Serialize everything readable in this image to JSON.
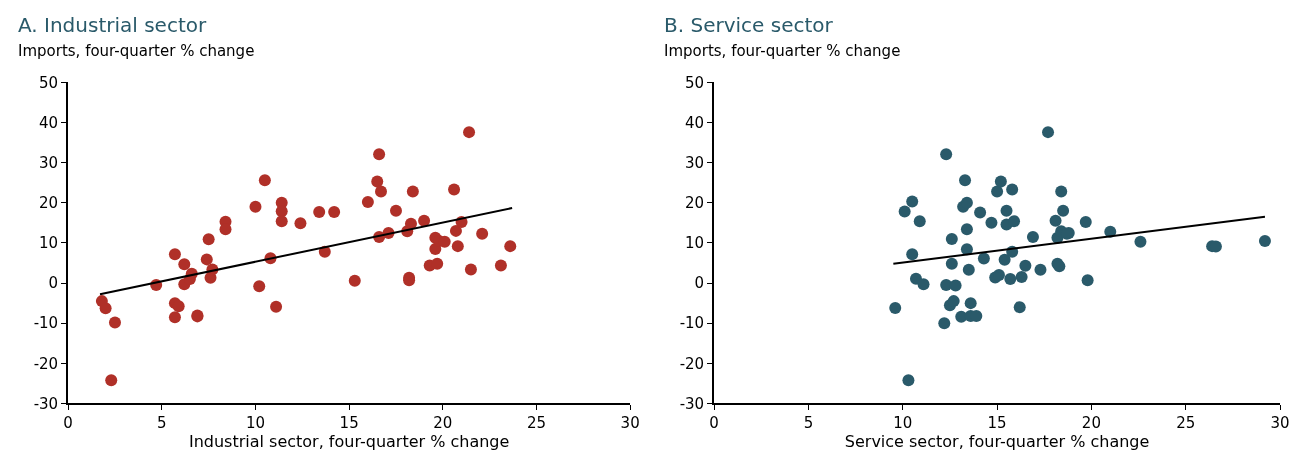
{
  "chart_data": [
    {
      "type": "scatter",
      "title": "A. Industrial sector",
      "ylabel": "Imports, four-quarter % change",
      "xlabel": "Industrial sector, four-quarter % change",
      "xlim": [
        0,
        30
      ],
      "xticks": [
        0,
        5,
        10,
        15,
        20,
        25,
        30
      ],
      "ylim": [
        -30,
        50
      ],
      "yticks": [
        -30,
        -20,
        -10,
        0,
        10,
        20,
        30,
        40,
        50
      ],
      "series": [
        {
          "marker": "circle",
          "color": "#b03028",
          "x": [
            1.8,
            2.0,
            2.5,
            2.3,
            4.7,
            5.7,
            5.7,
            5.7,
            5.9,
            6.2,
            6.2,
            6.5,
            6.6,
            6.9,
            6.9,
            7.4,
            7.5,
            7.6,
            7.7,
            8.4,
            8.4,
            10.0,
            10.2,
            10.5,
            10.8,
            11.1,
            11.4,
            11.4,
            11.4,
            12.4,
            13.4,
            13.7,
            14.2,
            15.3,
            16.0,
            16.5,
            16.6,
            16.6,
            16.7,
            17.1,
            17.5,
            18.1,
            18.2,
            18.2,
            18.3,
            18.4,
            19.0,
            19.3,
            19.6,
            19.6,
            19.7,
            19.8,
            20.1,
            20.6,
            20.7,
            20.8,
            21.0,
            21.4,
            21.5,
            22.1,
            23.1,
            23.6
          ],
          "values": [
            -4.5,
            -6.3,
            -9.8,
            -24.2,
            -0.5,
            7.2,
            -5.0,
            -8.5,
            -5.8,
            4.7,
            -0.3,
            1.0,
            2.3,
            -8.1,
            -8.3,
            5.9,
            10.9,
            1.3,
            3.4,
            15.3,
            13.4,
            19.0,
            -0.8,
            25.6,
            6.2,
            -5.9,
            20.0,
            17.9,
            15.4,
            14.9,
            17.7,
            7.8,
            17.7,
            0.6,
            20.2,
            25.3,
            32.1,
            11.5,
            22.8,
            12.5,
            18.0,
            12.9,
            1.3,
            0.7,
            14.8,
            22.8,
            15.5,
            4.4,
            11.3,
            8.5,
            4.8,
            10.5,
            10.3,
            23.3,
            13.0,
            9.2,
            15.2,
            37.6,
            3.4,
            12.3,
            4.4,
            9.2
          ]
        },
        {
          "type": "line",
          "marker": "none",
          "color": "#000000",
          "x": [
            1.7,
            23.7
          ],
          "values": [
            -2.8,
            18.7
          ]
        }
      ]
    },
    {
      "type": "scatter",
      "title": "B. Service sector",
      "ylabel": "Imports, four-quarter % change",
      "xlabel": "Service sector, four-quarter % change",
      "xlim": [
        0,
        30
      ],
      "xticks": [
        0,
        5,
        10,
        15,
        20,
        25,
        30
      ],
      "ylim": [
        -30,
        50
      ],
      "yticks": [
        -30,
        -20,
        -10,
        0,
        10,
        20,
        30,
        40,
        50
      ],
      "series": [
        {
          "marker": "circle",
          "color": "#2a5a6a",
          "x": [
            9.6,
            10.1,
            10.3,
            10.5,
            10.5,
            10.7,
            10.9,
            11.1,
            12.3,
            12.2,
            12.3,
            12.5,
            12.6,
            12.7,
            12.6,
            12.8,
            13.1,
            13.2,
            13.3,
            13.4,
            13.4,
            13.4,
            13.5,
            13.6,
            13.6,
            13.9,
            14.1,
            14.3,
            14.7,
            14.9,
            15.0,
            15.1,
            15.2,
            15.4,
            15.5,
            15.5,
            15.7,
            15.8,
            15.8,
            15.9,
            16.2,
            16.3,
            16.5,
            16.9,
            17.3,
            17.7,
            18.1,
            18.2,
            18.2,
            18.3,
            18.4,
            18.5,
            18.4,
            18.8,
            18.7,
            19.7,
            19.8,
            21.0,
            22.6,
            26.4,
            26.6,
            29.2
          ],
          "values": [
            -6.2,
            17.8,
            -24.2,
            20.3,
            7.2,
            1.1,
            15.4,
            -0.3,
            32.1,
            -10.0,
            -0.5,
            -5.5,
            4.8,
            -4.5,
            11.0,
            -0.6,
            -8.4,
            19.0,
            25.6,
            20.0,
            13.4,
            8.4,
            3.3,
            -5.0,
            -8.2,
            -8.2,
            17.6,
            6.1,
            15.0,
            1.4,
            22.8,
            2.0,
            25.3,
            5.8,
            18.0,
            14.6,
            1.0,
            23.3,
            7.8,
            15.4,
            -6.0,
            1.5,
            4.3,
            11.5,
            3.3,
            37.6,
            15.5,
            11.3,
            4.8,
            4.2,
            22.8,
            18.0,
            12.9,
            12.5,
            12.3,
            15.2,
            0.7,
            12.8,
            10.3,
            9.2,
            9.1,
            10.5
          ]
        },
        {
          "type": "line",
          "marker": "none",
          "color": "#000000",
          "x": [
            9.5,
            29.2
          ],
          "values": [
            4.8,
            16.5
          ]
        }
      ]
    }
  ]
}
